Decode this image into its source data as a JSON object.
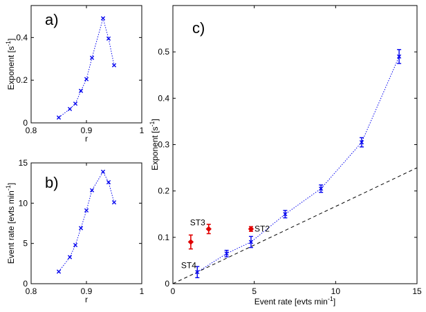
{
  "colors": {
    "series": "#0000ee",
    "highlight": "#e00000",
    "axis": "#000000",
    "dash": "#000000"
  },
  "chart_data": [
    {
      "panel": "a)",
      "type": "scatter",
      "xlabel": "r",
      "ylabel": "Exponent [s",
      "ylabel_sup": "-1",
      "ylabel_end": "]",
      "xlim": [
        0.8,
        1.0
      ],
      "ylim": [
        0,
        0.55
      ],
      "xticks": [
        0.8,
        0.9,
        1.0
      ],
      "xtick_labels": [
        "0.8",
        "0.9",
        "1"
      ],
      "yticks": [
        0,
        0.2,
        0.4
      ],
      "ytick_labels": [
        "0",
        "0.2",
        "0.4"
      ],
      "x": [
        0.85,
        0.87,
        0.88,
        0.89,
        0.9,
        0.91,
        0.93,
        0.94,
        0.95
      ],
      "y": [
        0.025,
        0.065,
        0.09,
        0.15,
        0.205,
        0.305,
        0.49,
        0.395,
        0.27
      ]
    },
    {
      "panel": "b)",
      "type": "scatter",
      "xlabel": "r",
      "ylabel": "Event rate [evts min",
      "ylabel_sup": "-1",
      "ylabel_end": "]",
      "xlim": [
        0.8,
        1.0
      ],
      "ylim": [
        0,
        15
      ],
      "xticks": [
        0.8,
        0.9,
        1.0
      ],
      "xtick_labels": [
        "0.8",
        "0.9",
        "1"
      ],
      "yticks": [
        0,
        5,
        10,
        15
      ],
      "ytick_labels": [
        "0",
        "5",
        "10",
        "15"
      ],
      "x": [
        0.85,
        0.87,
        0.88,
        0.89,
        0.9,
        0.91,
        0.93,
        0.94,
        0.95
      ],
      "y": [
        1.5,
        3.3,
        4.8,
        6.9,
        9.1,
        11.6,
        13.9,
        12.6,
        10.1
      ]
    },
    {
      "panel": "c)",
      "type": "scatter",
      "xlabel": "Event rate [evts min",
      "xlabel_sup": "-1",
      "xlabel_end": "]",
      "ylabel": "Exponent [s",
      "ylabel_sup": "-1",
      "ylabel_end": "]",
      "xlim": [
        0,
        15
      ],
      "ylim": [
        0,
        0.6
      ],
      "xticks": [
        0,
        5,
        10,
        15
      ],
      "xtick_labels": [
        "0",
        "5",
        "10",
        "15"
      ],
      "yticks": [
        0,
        0.1,
        0.2,
        0.3,
        0.4,
        0.5
      ],
      "ytick_labels": [
        "0",
        "0.1",
        "0.2",
        "0.3",
        "0.4",
        "0.5"
      ],
      "series_main": {
        "x": [
          1.5,
          3.3,
          4.8,
          6.9,
          9.1,
          11.6,
          13.9
        ],
        "y": [
          0.025,
          0.065,
          0.09,
          0.15,
          0.205,
          0.305,
          0.49
        ],
        "err": [
          0.012,
          0.007,
          0.012,
          0.008,
          0.008,
          0.01,
          0.015
        ]
      },
      "series_st": [
        {
          "label": "ST4",
          "x": 1.1,
          "y": 0.09,
          "err": 0.015
        },
        {
          "label": "ST3",
          "x": 2.2,
          "y": 0.118,
          "err": 0.01
        },
        {
          "label": "ST2",
          "x": 4.8,
          "y": 0.118,
          "err": 0.005
        }
      ],
      "dashed_line": {
        "x": [
          0,
          15
        ],
        "y": [
          0,
          0.25
        ]
      }
    }
  ]
}
